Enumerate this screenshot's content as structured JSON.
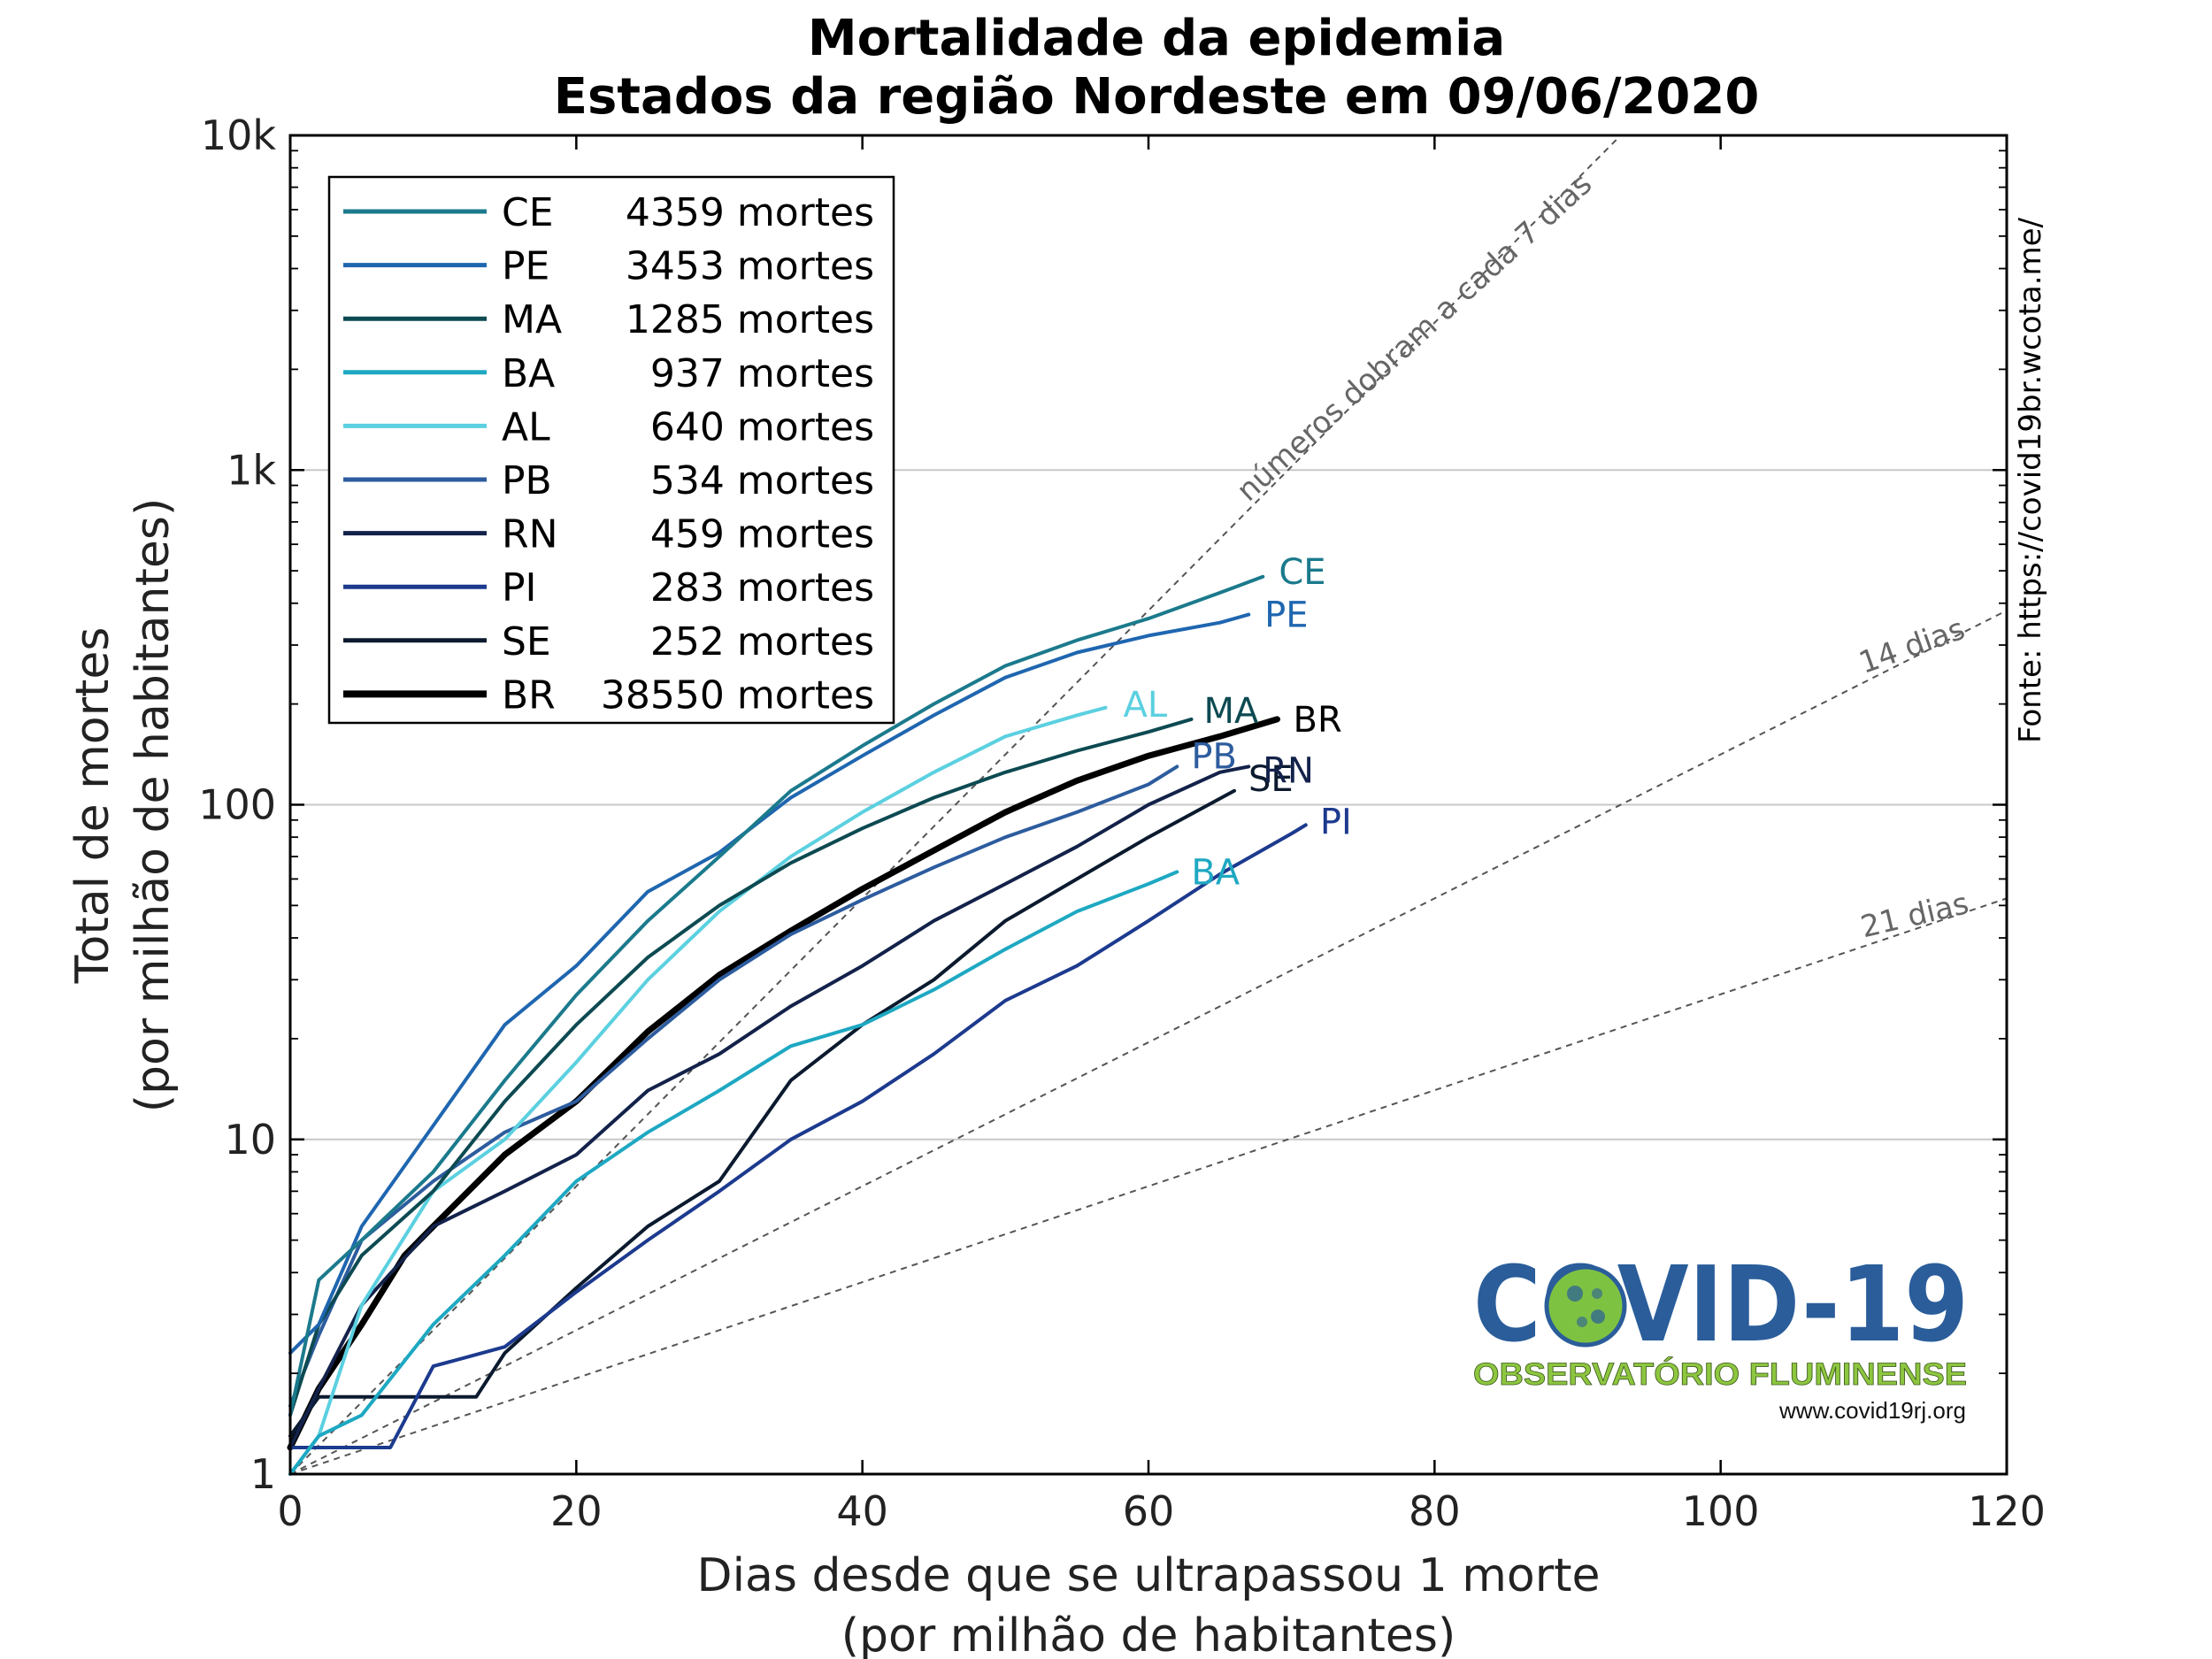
{
  "chart_data": {
    "type": "line",
    "title": "Mortalidade da epidemia",
    "subtitle": "Estados da região Nordeste em 09/06/2020",
    "xlabel": "Dias desde que se ultrapassou 1 morte",
    "xlabel2": "(por milhão de habitantes)",
    "ylabel": "Total de mortes",
    "ylabel2": "(por milhão de habitantes)",
    "xlim": [
      0,
      120
    ],
    "ylim": [
      1,
      10000
    ],
    "yscale": "log",
    "xticks": [
      "0",
      "20",
      "40",
      "60",
      "80",
      "100",
      "120"
    ],
    "yticks": [
      "1",
      "10",
      "100",
      "1k",
      "10k"
    ],
    "grid": "horizontal at decades",
    "legend_position": "top-left",
    "legend_unit": "mortes",
    "source": "Fonte: https://covid19br.wcota.me/",
    "guides": [
      {
        "label": "números dobram a cada 7 dias",
        "doubling_days": 7
      },
      {
        "label": "14 dias",
        "doubling_days": 14
      },
      {
        "label": "21 dias",
        "doubling_days": 21
      }
    ],
    "series": [
      {
        "name": "CE",
        "deaths": "4359",
        "color": "#1b7a8c",
        "end_label": "CE",
        "x": [
          0,
          2,
          5,
          10,
          15,
          20,
          25,
          30,
          35,
          40,
          45,
          50,
          55,
          60,
          65,
          68
        ],
        "y": [
          1.5,
          3.8,
          5,
          8,
          15,
          27,
          45,
          70,
          110,
          150,
          200,
          260,
          310,
          360,
          430,
          480
        ]
      },
      {
        "name": "PE",
        "deaths": "3453",
        "color": "#1f66b0",
        "end_label": "PE",
        "x": [
          0,
          2,
          5,
          10,
          15,
          20,
          25,
          30,
          35,
          40,
          45,
          50,
          55,
          60,
          65,
          67
        ],
        "y": [
          2.3,
          2.8,
          5.5,
          11,
          22,
          33,
          55,
          72,
          105,
          140,
          185,
          240,
          285,
          320,
          350,
          370
        ]
      },
      {
        "name": "MA",
        "deaths": "1285",
        "color": "#0d4a52",
        "end_label": "MA",
        "x": [
          0,
          2,
          5,
          10,
          15,
          20,
          25,
          30,
          35,
          40,
          45,
          50,
          55,
          60,
          63
        ],
        "y": [
          1.5,
          2.8,
          4.5,
          7,
          13,
          22,
          35,
          50,
          67,
          85,
          105,
          125,
          145,
          165,
          180
        ]
      },
      {
        "name": "BA",
        "deaths": "937",
        "color": "#1ea8c2",
        "end_label": "BA",
        "x": [
          0,
          2,
          5,
          10,
          15,
          20,
          25,
          30,
          35,
          40,
          45,
          50,
          55,
          60,
          62
        ],
        "y": [
          1,
          1.3,
          1.5,
          2.8,
          4.5,
          7.5,
          10.5,
          14,
          19,
          22,
          28,
          37,
          48,
          58,
          63
        ]
      },
      {
        "name": "AL",
        "deaths": "640",
        "color": "#5bd0e0",
        "end_label": "AL",
        "x": [
          0,
          2,
          5,
          10,
          15,
          20,
          25,
          30,
          35,
          40,
          45,
          50,
          55,
          57
        ],
        "y": [
          1,
          1.3,
          3.2,
          7,
          10,
          17,
          30,
          48,
          70,
          95,
          125,
          160,
          185,
          195
        ]
      },
      {
        "name": "PB",
        "deaths": "534",
        "color": "#2d5c9e",
        "end_label": "PB",
        "x": [
          0,
          2,
          5,
          10,
          15,
          20,
          25,
          30,
          35,
          40,
          45,
          50,
          55,
          60,
          62
        ],
        "y": [
          1.6,
          2.6,
          5,
          7.5,
          10.5,
          13,
          20,
          30,
          41,
          52,
          65,
          80,
          95,
          115,
          130
        ]
      },
      {
        "name": "RN",
        "deaths": "459",
        "color": "#13224a",
        "end_label": "RN",
        "x": [
          0,
          2,
          5,
          10,
          15,
          20,
          25,
          30,
          35,
          40,
          45,
          50,
          55,
          60,
          65,
          67
        ],
        "y": [
          1.2,
          1.8,
          3.2,
          5.5,
          7,
          9,
          14,
          18,
          25,
          33,
          45,
          58,
          75,
          100,
          125,
          130
        ]
      },
      {
        "name": "PI",
        "deaths": "283",
        "color": "#1c3a8e",
        "end_label": "PI",
        "x": [
          0,
          2,
          5,
          7,
          10,
          15,
          20,
          25,
          30,
          35,
          40,
          45,
          50,
          55,
          60,
          65,
          70,
          71
        ],
        "y": [
          1.2,
          1.2,
          1.2,
          1.2,
          2.1,
          2.4,
          3.5,
          5,
          7,
          10,
          13,
          18,
          26,
          33,
          45,
          62,
          82,
          87
        ]
      },
      {
        "name": "SE",
        "deaths": "252",
        "color": "#0b1a2e",
        "end_label": "SE",
        "x": [
          0,
          2,
          5,
          10,
          13,
          15,
          20,
          25,
          30,
          35,
          40,
          45,
          50,
          55,
          60,
          66
        ],
        "y": [
          1.3,
          1.7,
          1.7,
          1.7,
          1.7,
          2.3,
          3.6,
          5.5,
          7.5,
          15,
          22,
          30,
          45,
          60,
          80,
          110
        ]
      },
      {
        "name": "BR",
        "deaths": "38550",
        "color": "#000000",
        "end_label": "BR",
        "x": [
          0,
          2,
          5,
          8,
          10,
          15,
          20,
          25,
          30,
          35,
          40,
          45,
          50,
          55,
          60,
          65,
          69
        ],
        "y": [
          1.2,
          1.8,
          2.8,
          4.5,
          5.5,
          9,
          13,
          21,
          31,
          42,
          56,
          73,
          95,
          118,
          140,
          160,
          180
        ]
      }
    ]
  },
  "logo": {
    "main": "COVID-19",
    "subtitle": "OBSERVATÓRIO FLUMINENSE",
    "url": "www.covid19rj.org"
  }
}
